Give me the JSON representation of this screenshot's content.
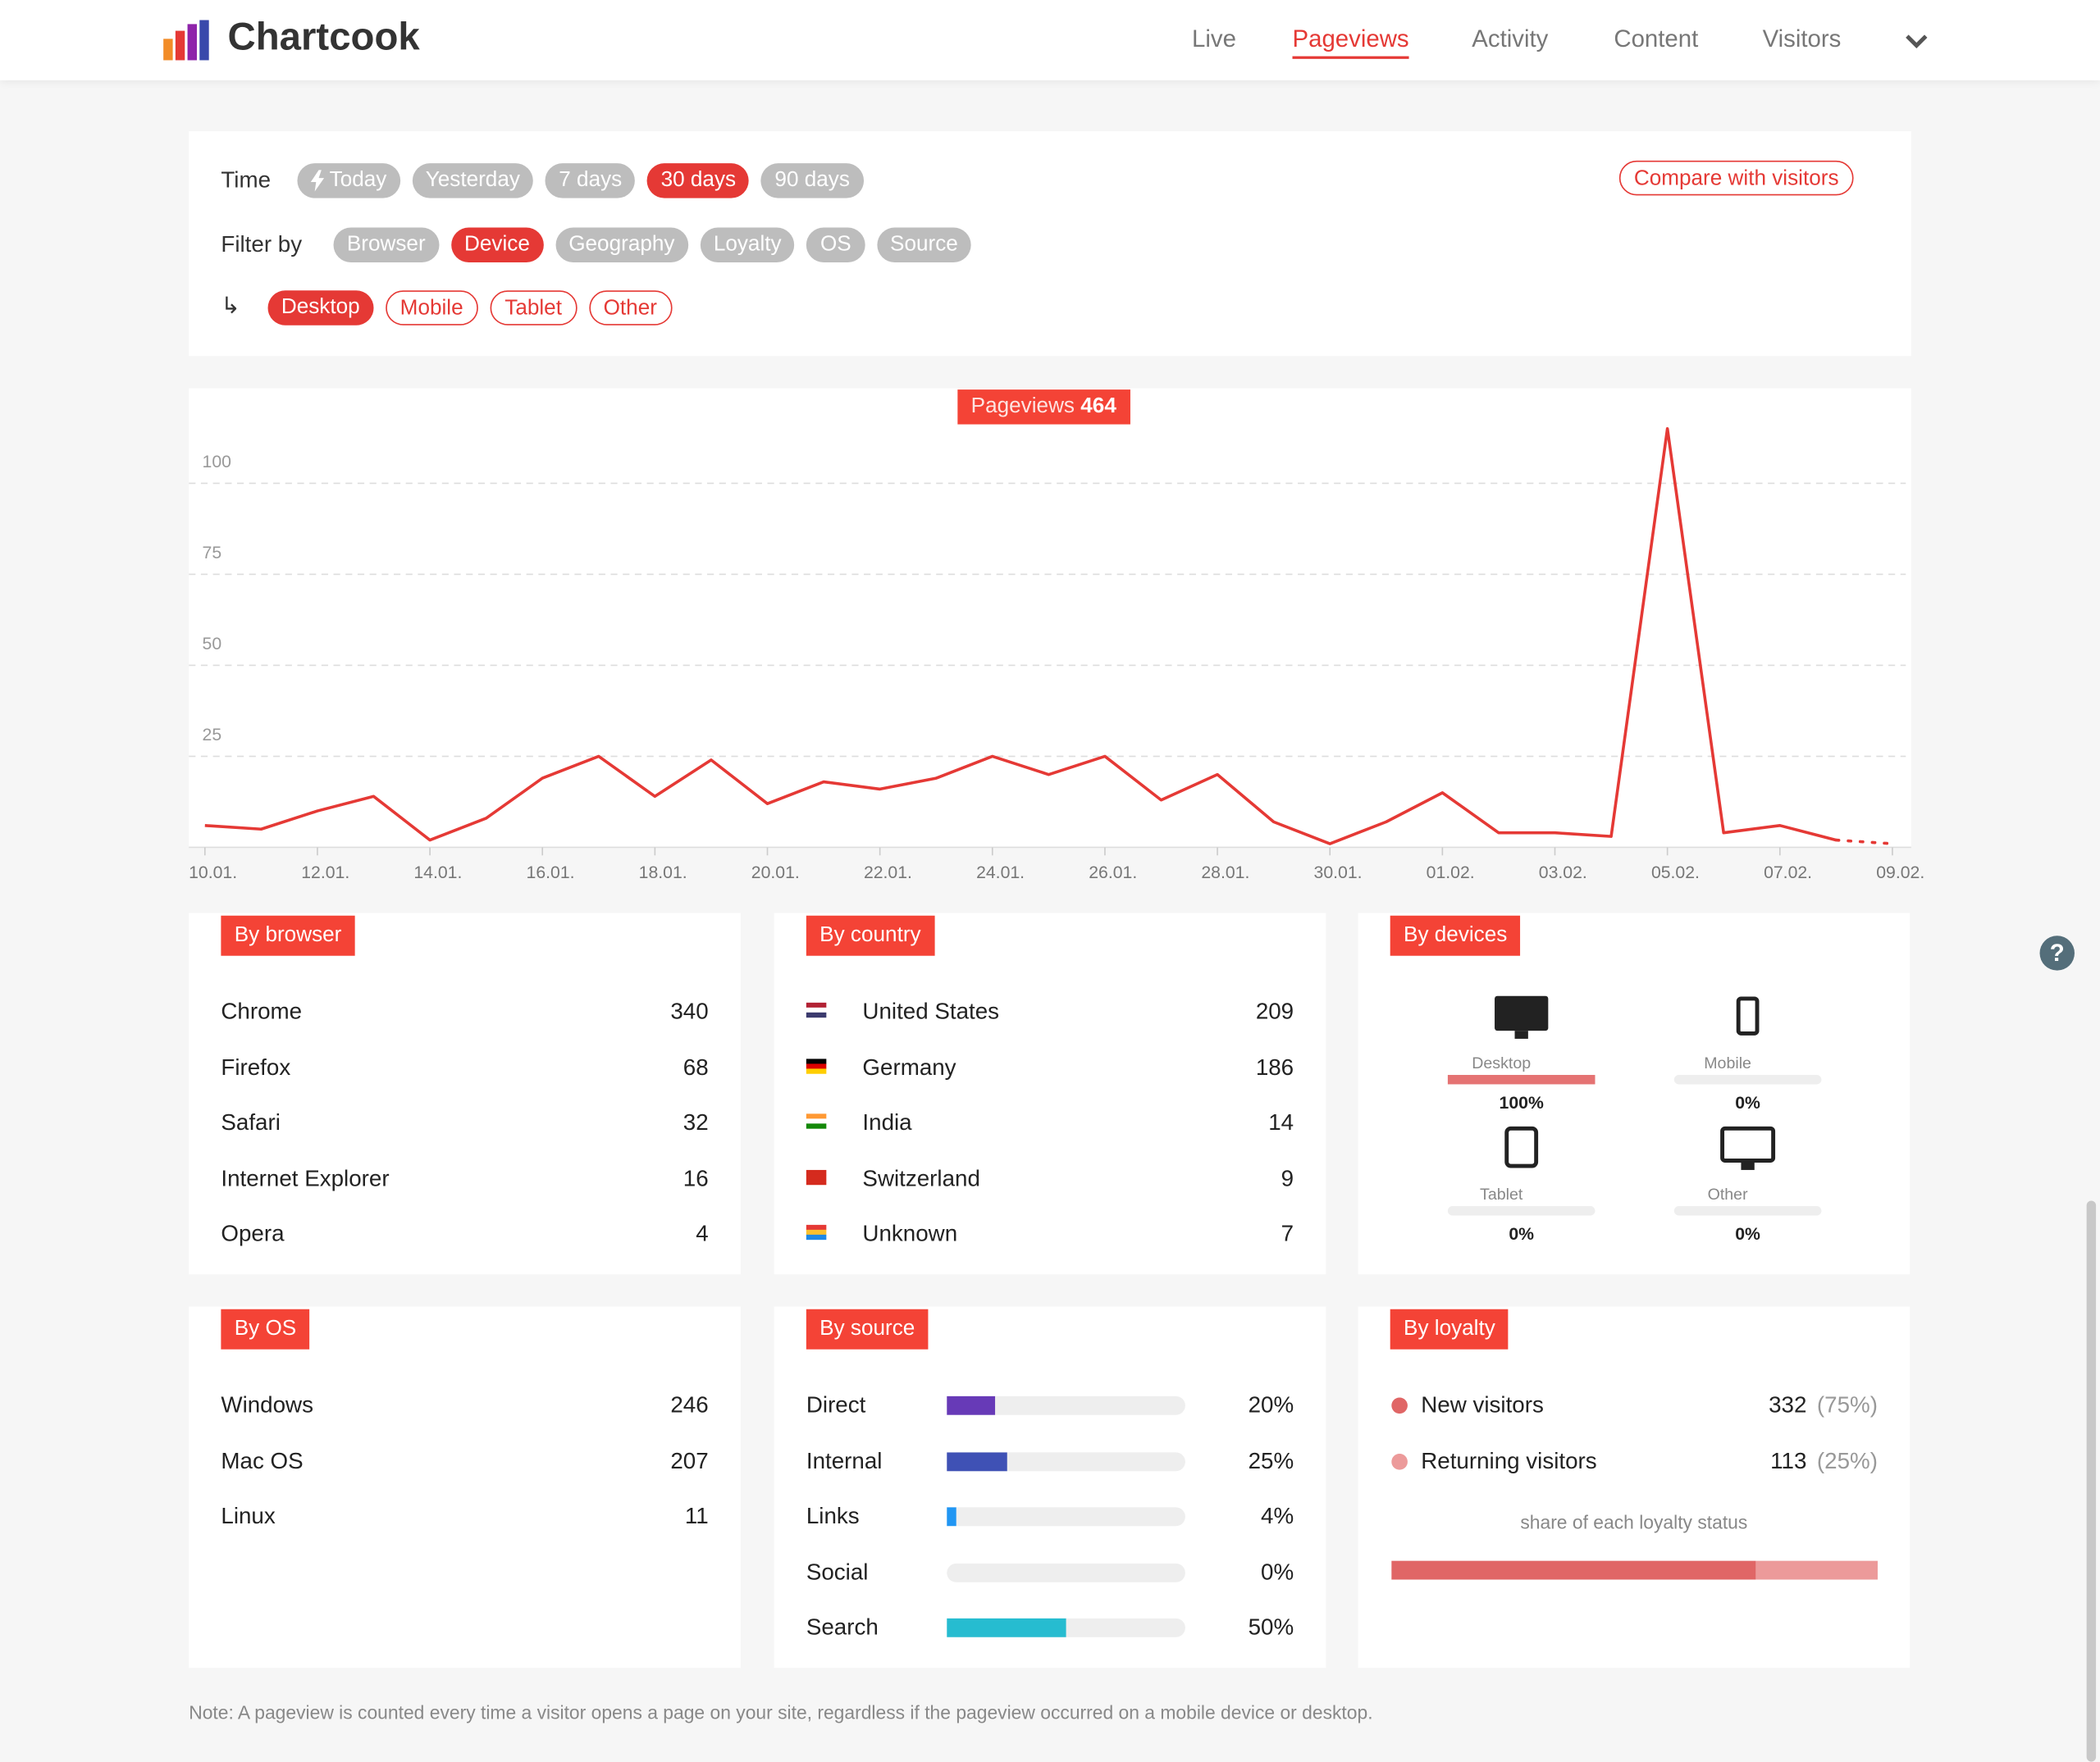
{
  "header": {
    "brand": "Chartcook",
    "nav": [
      "Live",
      "Pageviews",
      "Activity",
      "Content",
      "Visitors"
    ],
    "active_nav": 1,
    "help": "?"
  },
  "filters": {
    "time_label": "Time",
    "time_options": [
      "Today",
      "Yesterday",
      "7 days",
      "30 days",
      "90 days"
    ],
    "time_active": 3,
    "compare": "Compare with visitors",
    "filter_label": "Filter by",
    "filter_options": [
      "Browser",
      "Device",
      "Geography",
      "Loyalty",
      "OS",
      "Source"
    ],
    "filter_active": 1,
    "arrow": "↳",
    "sub_options": [
      "Desktop",
      "Mobile",
      "Tablet",
      "Other"
    ],
    "sub_active": 0
  },
  "chart_data": {
    "type": "line",
    "badge_label": "Pageviews",
    "total": 464,
    "categories": [
      "10.01.",
      null,
      "12.01.",
      null,
      "14.01.",
      null,
      "16.01.",
      null,
      "18.01.",
      null,
      "20.01.",
      null,
      "22.01.",
      null,
      "24.01.",
      null,
      "26.01.",
      null,
      "28.01.",
      null,
      "30.01.",
      null,
      "01.02.",
      null,
      "03.02.",
      null,
      "05.02.",
      null,
      "07.02.",
      null,
      "09.02."
    ],
    "values": [
      6,
      5,
      10,
      14,
      2,
      8,
      19,
      25,
      14,
      24,
      12,
      18,
      16,
      19,
      25,
      20,
      25,
      13,
      20,
      7,
      1,
      7,
      15,
      4,
      4,
      3,
      115,
      4,
      6,
      2,
      1
    ],
    "color": "#e53935",
    "partial_last": true,
    "ylim": [
      0,
      125
    ],
    "yticks": [
      25,
      50,
      75,
      100
    ],
    "grid": true
  },
  "panels": {
    "browser": {
      "title": "By browser",
      "rows": [
        {
          "name": "Chrome",
          "value": 340
        },
        {
          "name": "Firefox",
          "value": 68
        },
        {
          "name": "Safari",
          "value": 32
        },
        {
          "name": "Internet Explorer",
          "value": 16
        },
        {
          "name": "Opera",
          "value": 4
        }
      ]
    },
    "country": {
      "title": "By country",
      "rows": [
        {
          "name": "United States",
          "value": 209
        },
        {
          "name": "Germany",
          "value": 186
        },
        {
          "name": "India",
          "value": 14
        },
        {
          "name": "Switzerland",
          "value": 9
        },
        {
          "name": "Unknown",
          "value": 7
        }
      ]
    },
    "devices": {
      "title": "By devices",
      "items": [
        {
          "name": "Desktop",
          "value": 100,
          "label": "100%"
        },
        {
          "name": "Mobile",
          "value": 0,
          "label": "0%"
        },
        {
          "name": "Tablet",
          "value": 0,
          "label": "0%"
        },
        {
          "name": "Other",
          "value": 0,
          "label": "0%"
        }
      ],
      "color": "#e57373"
    },
    "os": {
      "title": "By OS",
      "rows": [
        {
          "name": "Windows",
          "value": 246
        },
        {
          "name": "Mac OS",
          "value": 207
        },
        {
          "name": "Linux",
          "value": 11
        }
      ]
    },
    "source": {
      "title": "By source",
      "rows": [
        {
          "name": "Direct",
          "value": 20,
          "label": "20%",
          "color": "#673ab7"
        },
        {
          "name": "Internal",
          "value": 25,
          "label": "25%",
          "color": "#3f51b5"
        },
        {
          "name": "Links",
          "value": 4,
          "label": "4%",
          "color": "#2196f3"
        },
        {
          "name": "Social",
          "value": 0,
          "label": "0%",
          "color": "#4caf50"
        },
        {
          "name": "Search",
          "value": 50,
          "label": "50%",
          "color": "#26bcd0"
        }
      ]
    },
    "loyalty": {
      "title": "By loyalty",
      "rows": [
        {
          "name": "New visitors",
          "count": 332,
          "share": 75,
          "share_label": "(75%)",
          "color": "#e06666"
        },
        {
          "name": "Returning visitors",
          "count": 113,
          "share": 25,
          "share_label": "(25%)",
          "color": "#ec9a9a"
        }
      ],
      "caption": "share of each loyalty status"
    }
  },
  "note": "Note: A pageview is counted every time a visitor opens a page on your site, regardless if the pageview occurred on a mobile device or desktop."
}
